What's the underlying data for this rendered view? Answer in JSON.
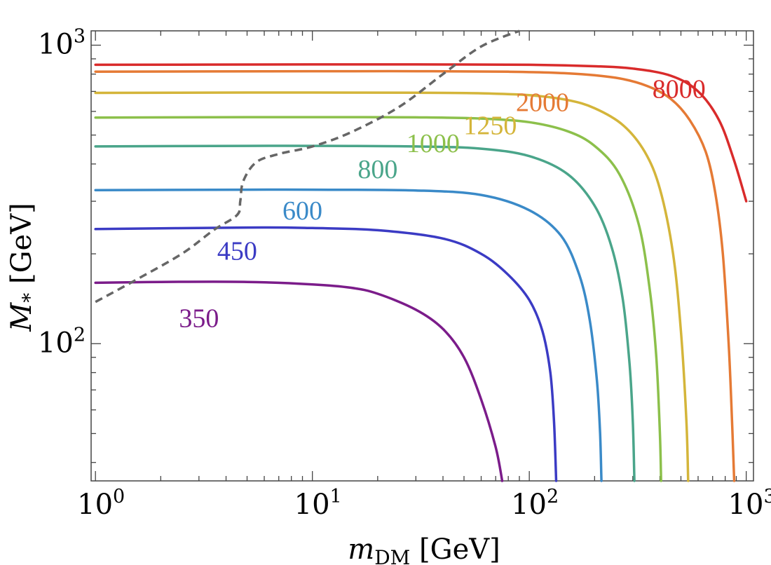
{
  "chart_data": {
    "type": "line",
    "title": "",
    "xlabel": {
      "main": "m",
      "sub": "DM",
      "unit": " [GeV]"
    },
    "ylabel": {
      "main": "M",
      "sub": "*",
      "unit": " [GeV]"
    },
    "xscale": "log",
    "yscale": "log",
    "xlim": [
      0.955,
      1080
    ],
    "ylim": [
      34.7,
      1117
    ],
    "x_major_ticks": [
      1,
      10,
      100,
      1000
    ],
    "y_major_ticks": [
      100,
      1000
    ],
    "x_tick_labels": [
      {
        "base": "10",
        "exp": "0"
      },
      {
        "base": "10",
        "exp": "1"
      },
      {
        "base": "10",
        "exp": "2"
      },
      {
        "base": "10",
        "exp": "3"
      }
    ],
    "y_tick_labels": [
      {
        "base": "10",
        "exp": "2"
      },
      {
        "base": "10",
        "exp": "3"
      }
    ],
    "series": [
      {
        "name": "350",
        "color": "#7b1c8a",
        "x": [
          1,
          2,
          5,
          10,
          15,
          20,
          30,
          40,
          50,
          60,
          70,
          75
        ],
        "y": [
          160,
          161,
          161,
          158,
          154,
          147,
          130,
          112,
          90,
          65,
          45,
          34.7
        ],
        "label_at": [
          3.0,
          122
        ]
      },
      {
        "name": "450",
        "color": "#3b3bc4",
        "x": [
          1,
          5,
          10,
          20,
          40,
          60,
          80,
          100,
          115,
          125,
          130,
          133
        ],
        "y": [
          242,
          245,
          244,
          240,
          225,
          200,
          170,
          140,
          110,
          80,
          55,
          34.7
        ],
        "label_at": [
          4.5,
          205
        ]
      },
      {
        "name": "600",
        "color": "#3a8ac8",
        "x": [
          1,
          5,
          10,
          30,
          60,
          100,
          140,
          170,
          190,
          205,
          212,
          215
        ],
        "y": [
          327,
          328,
          328,
          326,
          315,
          280,
          230,
          170,
          120,
          75,
          50,
          34.7
        ],
        "label_at": [
          9.0,
          280
        ]
      },
      {
        "name": "800",
        "color": "#4aa58a",
        "x": [
          1,
          5,
          10,
          30,
          60,
          100,
          150,
          200,
          240,
          270,
          290,
          300,
          305
        ],
        "y": [
          458,
          460,
          460,
          458,
          450,
          425,
          370,
          290,
          210,
          140,
          85,
          55,
          34.7
        ],
        "label_at": [
          20,
          385
        ]
      },
      {
        "name": "1000",
        "color": "#8cc04b",
        "x": [
          1,
          5,
          10,
          30,
          60,
          100,
          150,
          200,
          260,
          320,
          360,
          385,
          400,
          405
        ],
        "y": [
          572,
          574,
          574,
          573,
          568,
          552,
          515,
          460,
          370,
          250,
          150,
          90,
          50,
          34.7
        ],
        "label_at": [
          36,
          470
        ]
      },
      {
        "name": "1250",
        "color": "#d4b53a",
        "x": [
          1,
          5,
          10,
          30,
          60,
          100,
          150,
          200,
          270,
          340,
          400,
          460,
          500,
          530,
          540
        ],
        "y": [
          692,
          694,
          694,
          693,
          690,
          680,
          655,
          615,
          540,
          440,
          330,
          200,
          110,
          55,
          34.7
        ],
        "label_at": [
          66,
          540
        ]
      },
      {
        "name": "2000",
        "color": "#e57a35",
        "x": [
          1,
          10,
          30,
          80,
          150,
          250,
          350,
          450,
          550,
          650,
          720,
          780,
          830,
          860,
          880
        ],
        "y": [
          815,
          818,
          818,
          815,
          805,
          778,
          730,
          660,
          560,
          440,
          320,
          200,
          100,
          55,
          34.7
        ],
        "label_at": [
          115,
          645
        ]
      },
      {
        "name": "8000",
        "color": "#d92b2b",
        "x": [
          1,
          10,
          30,
          100,
          200,
          300,
          450,
          600,
          750,
          880,
          1000
        ],
        "y": [
          860,
          862,
          862,
          860,
          850,
          835,
          790,
          700,
          560,
          410,
          300
        ],
        "label_at": [
          490,
          715
        ]
      },
      {
        "name": "boundary",
        "color": "#666666",
        "style": "dashed",
        "x": [
          1,
          1.5,
          2.5,
          3.5,
          4.5,
          4.65,
          4.8,
          5.5,
          7,
          10,
          15,
          25,
          40,
          60,
          90
        ],
        "y": [
          138,
          162,
          200,
          240,
          270,
          300,
          350,
          405,
          432,
          458,
          510,
          620,
          800,
          990,
          1117
        ]
      }
    ]
  }
}
